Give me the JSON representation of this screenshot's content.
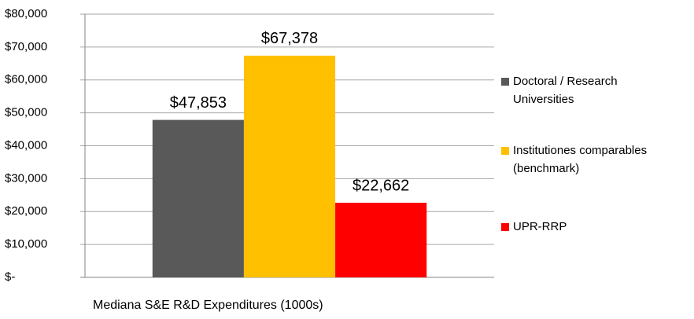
{
  "chart_data": {
    "type": "bar",
    "categories": [
      "Mediana S&E R&D Expenditures (1000s)"
    ],
    "series": [
      {
        "name": "Doctoral / Research Universities",
        "color": "#595959",
        "values": [
          47853
        ],
        "value_labels": [
          "$47,853"
        ]
      },
      {
        "name": "Institutiones comparables (benchmark)",
        "color": "#ffc000",
        "values": [
          67378
        ],
        "value_labels": [
          "$67,378"
        ]
      },
      {
        "name": "UPR-RRP",
        "color": "#ff0000",
        "values": [
          22662
        ],
        "value_labels": [
          "$22,662"
        ]
      }
    ],
    "ylim": [
      0,
      80000
    ],
    "yticks": [
      {
        "value": 0,
        "label": "$-"
      },
      {
        "value": 10000,
        "label": "$10,000"
      },
      {
        "value": 20000,
        "label": "$20,000"
      },
      {
        "value": 30000,
        "label": "$30,000"
      },
      {
        "value": 40000,
        "label": "$40,000"
      },
      {
        "value": 50000,
        "label": "$50,000"
      },
      {
        "value": 60000,
        "label": "$60,000"
      },
      {
        "value": 70000,
        "label": "$70,000"
      },
      {
        "value": 80000,
        "label": "$80,000"
      }
    ],
    "grid": true,
    "legend": "right"
  }
}
